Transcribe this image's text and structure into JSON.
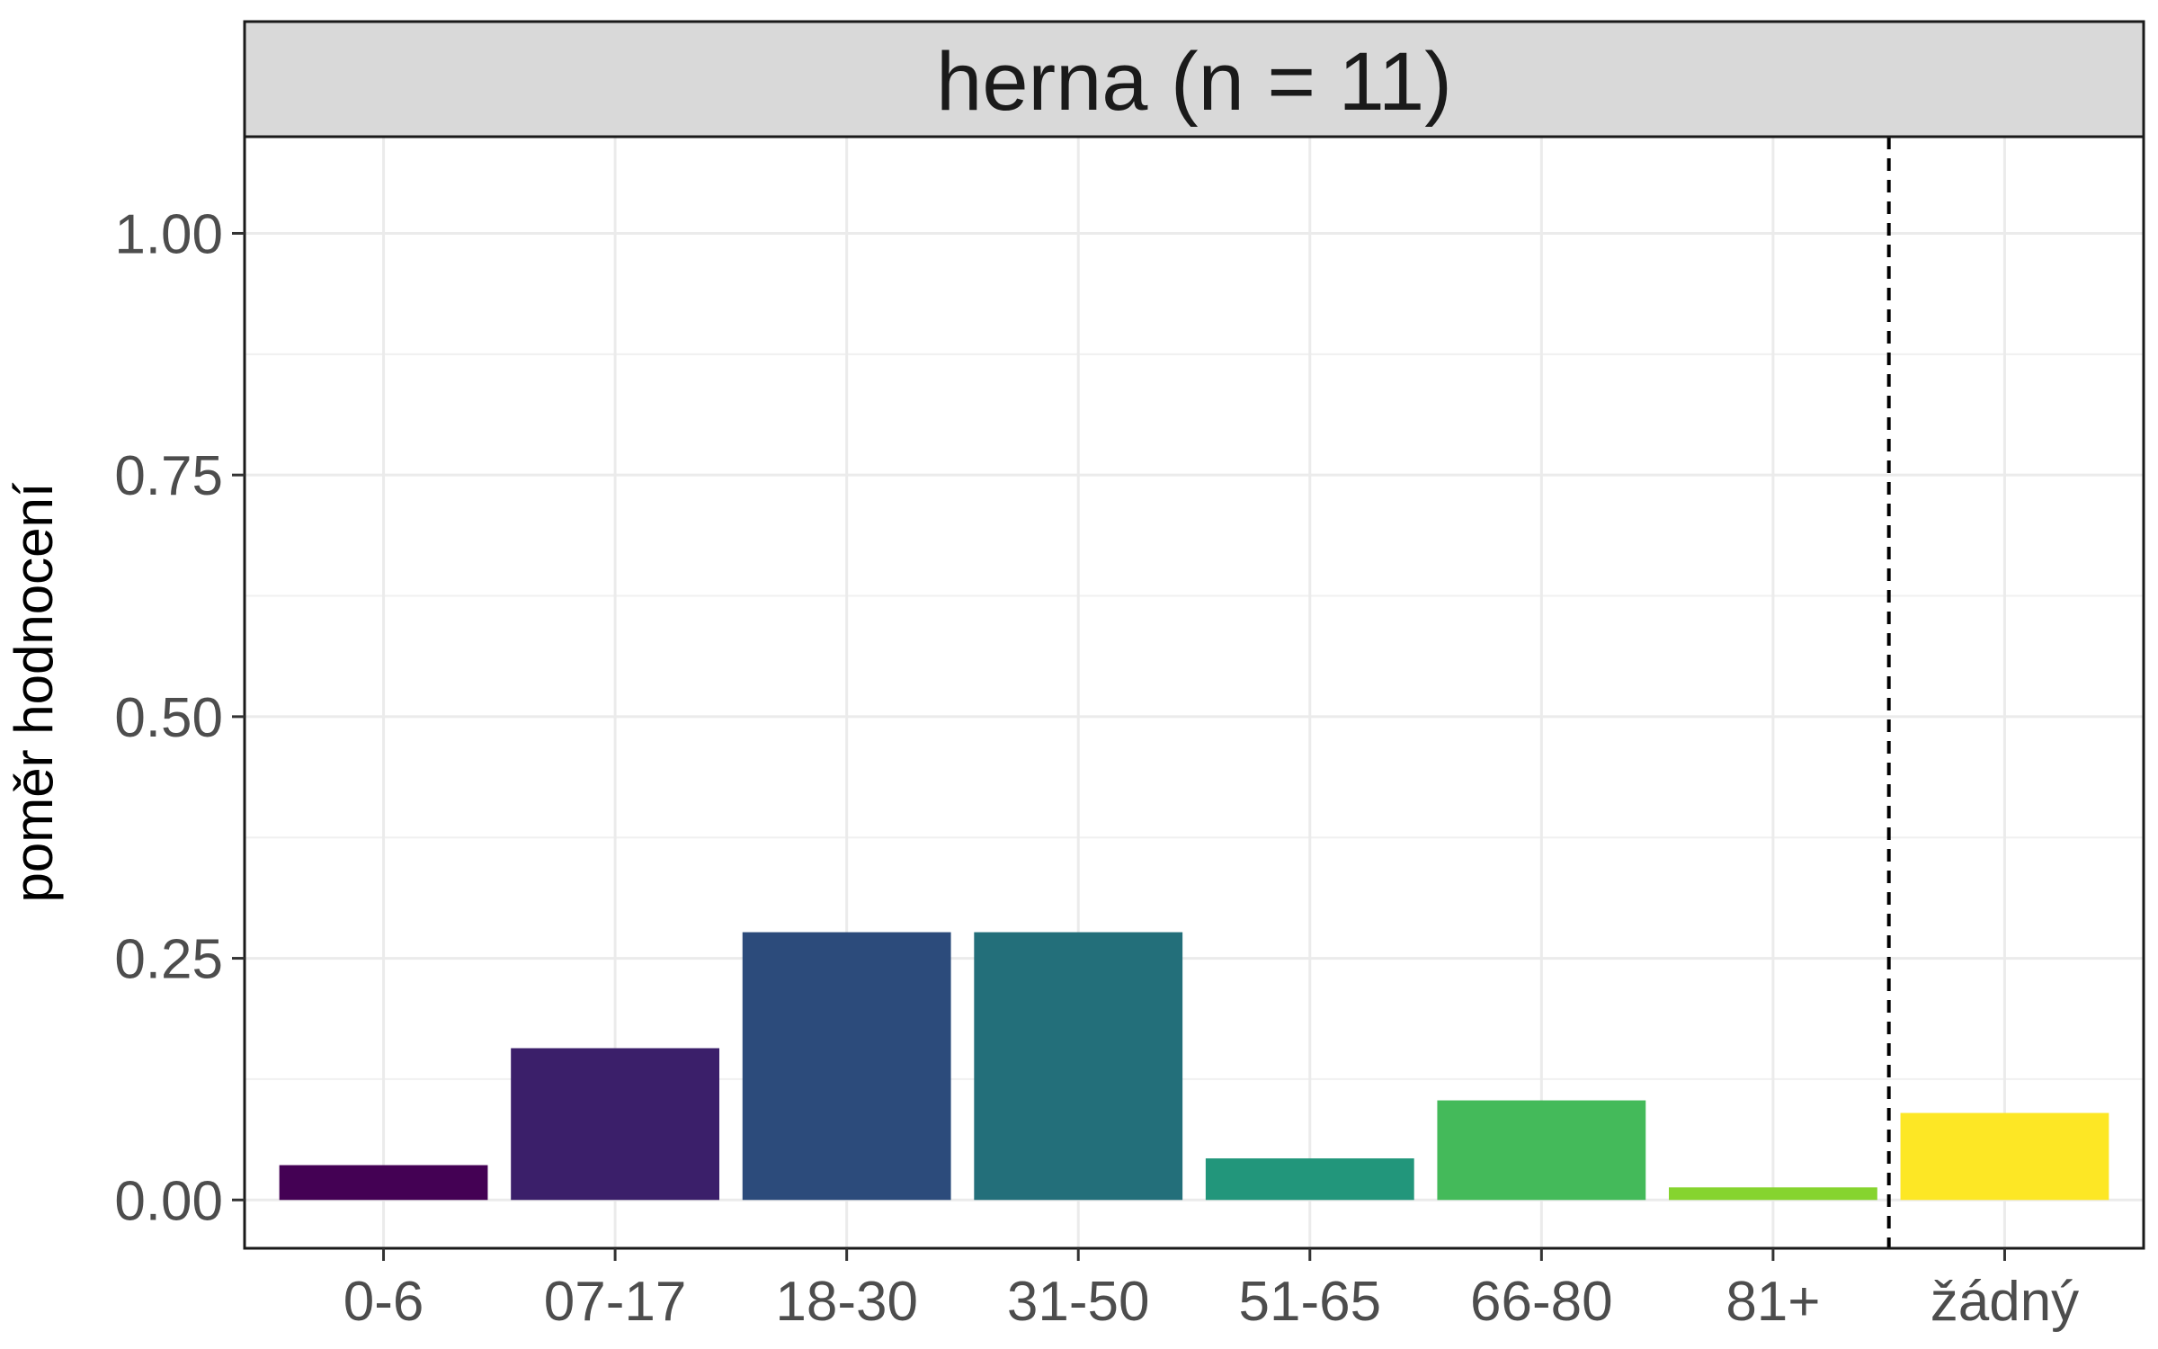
{
  "chart_data": {
    "type": "bar",
    "panel_title": "herna (n = 11)",
    "title": "",
    "xlabel": "",
    "ylabel": "poměr hodnocení",
    "categories": [
      "0-6",
      "07-17",
      "18-30",
      "31-50",
      "51-65",
      "66-80",
      "81+",
      "žádný"
    ],
    "values": [
      0.036,
      0.157,
      0.277,
      0.277,
      0.043,
      0.103,
      0.013,
      0.09
    ],
    "colors": [
      "#440154",
      "#3B1F6A",
      "#2C4B7B",
      "#236F7A",
      "#22967B",
      "#44BA5A",
      "#86D42F",
      "#FDE725"
    ],
    "ylim": [
      -0.05,
      1.1
    ],
    "yticks": [
      0.0,
      0.25,
      0.5,
      0.75,
      1.0
    ],
    "ytick_labels": [
      "0.00",
      "0.25",
      "0.50",
      "0.75",
      "1.00"
    ],
    "separator_after_index": 6,
    "grid": true,
    "legend": "none"
  }
}
